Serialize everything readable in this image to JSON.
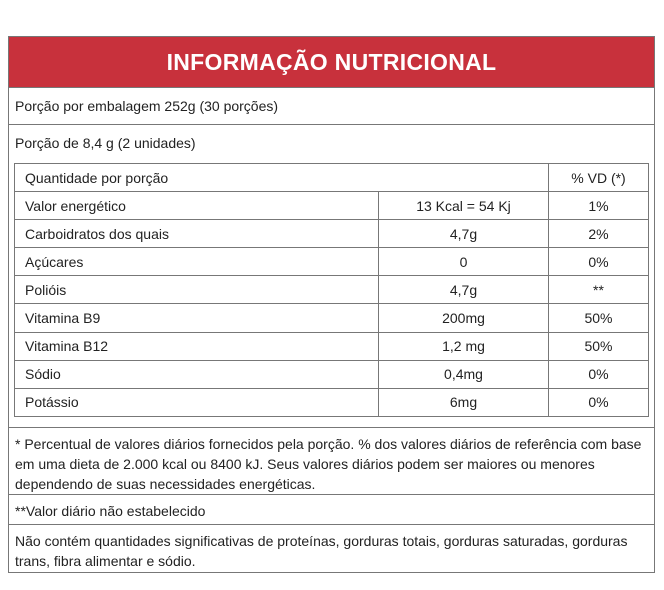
{
  "title": "INFORMAÇÃO NUTRICIONAL",
  "portions_per_package": "Porção por embalagem 252g (30 porções)",
  "portion": "Porção de 8,4 g (2 unidades)",
  "table": {
    "header": {
      "col1": "Quantidade por porção",
      "col3": "% VD (*)"
    },
    "rows": [
      {
        "name": "Valor energético",
        "amount": "13 Kcal = 54 Kj",
        "vd": "1%"
      },
      {
        "name": "Carboidratos dos quais",
        "amount": "4,7g",
        "vd": "2%"
      },
      {
        "name": "Açúcares",
        "amount": "0",
        "vd": "0%"
      },
      {
        "name": "Polióis",
        "amount": "4,7g",
        "vd": "**"
      },
      {
        "name": "Vitamina B9",
        "amount": "200mg",
        "vd": "50%"
      },
      {
        "name": "Vitamina B12",
        "amount": "1,2 mg",
        "vd": "50%"
      },
      {
        "name": "Sódio",
        "amount": "0,4mg",
        "vd": "0%"
      },
      {
        "name": "Potássio",
        "amount": "6mg",
        "vd": "0%"
      }
    ]
  },
  "footnote_1": "* Percentual de valores diários fornecidos pela porção. % dos valores diários de referência com base em uma dieta de 2.000 kcal ou 8400 kJ. Seus valores diários podem ser maiores ou menores dependendo de suas necessidades energéticas.",
  "footnote_2": "**Valor diário não estabelecido",
  "footnote_3": "Não contém quantidades significativas de proteínas, gorduras totais, gorduras saturadas, gorduras trans, fibra alimentar e sódio."
}
